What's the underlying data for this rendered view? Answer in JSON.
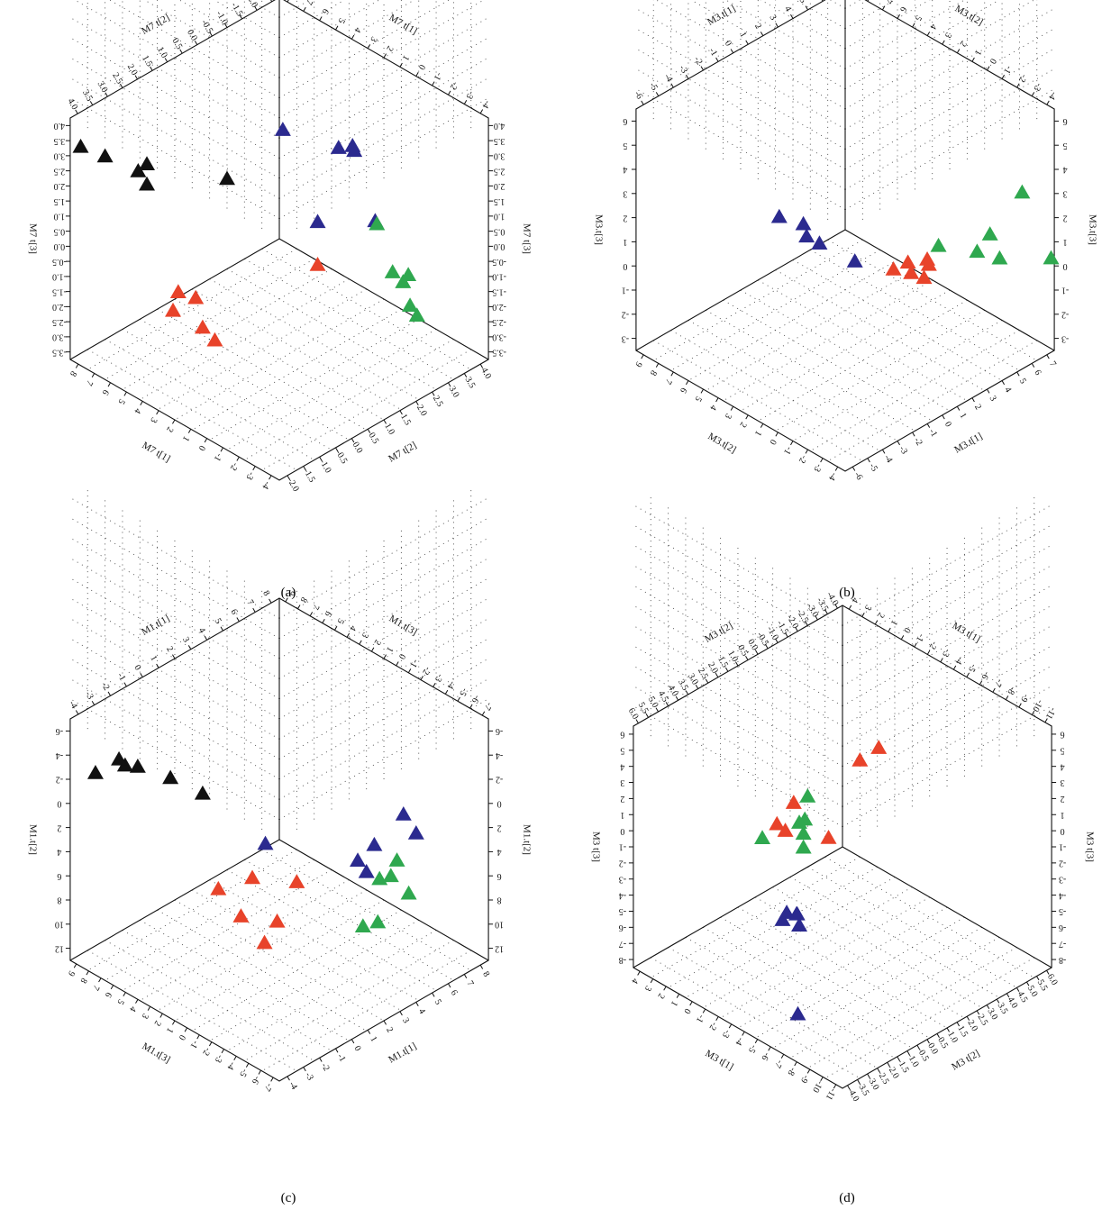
{
  "colors": {
    "red": "#e8432a",
    "green": "#2fa84f",
    "blue": "#2b2a8f",
    "black": "#111111"
  },
  "chart_data": [
    {
      "panel": "(a)",
      "type": "scatter",
      "axes": {
        "top_left": {
          "label": "M7 t[2]",
          "ticks": [
            "4.0",
            "3.5",
            "3.0",
            "2.5",
            "2.0",
            "1.5",
            "1.0",
            "0.5",
            "0.0",
            "-0.5",
            "-1.0",
            "-1.5",
            "-2.0",
            "-2.5"
          ]
        },
        "top_right": {
          "label": "M7 t[1]",
          "ticks": [
            "8",
            "7",
            "6",
            "5",
            "4",
            "3",
            "2",
            "1",
            "0",
            "-1",
            "-2",
            "-3",
            "-4"
          ]
        },
        "left": {
          "label": "M7 t[3]",
          "ticks": [
            "4.0",
            "3.5",
            "3.0",
            "2.5",
            "2.0",
            "1.5",
            "1.0",
            "0.5",
            "0.0",
            "-0.5",
            "-1.0",
            "-1.5",
            "-2.0",
            "-2.5",
            "-3.0",
            "-3.5"
          ]
        },
        "right": {
          "label": "M7 t[3]",
          "ticks": [
            "4.0",
            "3.5",
            "3.0",
            "2.5",
            "2.0",
            "1.5",
            "1.0",
            "0.5",
            "0.0",
            "-0.5",
            "-1.0",
            "-1.5",
            "-2.0",
            "-2.5",
            "-3.0",
            "-3.5"
          ]
        },
        "bottom_left": {
          "label": "M7 t[1]",
          "ticks": [
            "8",
            "7",
            "6",
            "5",
            "4",
            "3",
            "2",
            "1",
            "0",
            "-1",
            "-2",
            "-3",
            "-4"
          ]
        },
        "bottom_right": {
          "label": "M7 t[2]",
          "ticks": [
            "-2.0",
            "-1.5",
            "-1.0",
            "-0.5",
            "0.0",
            "0.5",
            "1.0",
            "1.5",
            "2.0",
            "2.5",
            "3.0",
            "3.5",
            "4.0"
          ]
        }
      },
      "series": [
        {
          "color": "black",
          "points": [
            [
              4.2,
              -3.6,
              2.0
            ],
            [
              3.4,
              -3.3,
              1.4
            ],
            [
              2.4,
              -2.6,
              1.2
            ],
            [
              2.9,
              -2.6,
              1.1
            ],
            [
              3.6,
              -2.0,
              1.4
            ],
            [
              1.4,
              -0.8,
              1.8
            ]
          ]
        },
        {
          "color": "blue",
          "points": [
            [
              -1.0,
              -0.4,
              3.5
            ],
            [
              -1.8,
              0.8,
              3.4
            ],
            [
              -2.2,
              1.0,
              3.5
            ],
            [
              -2.3,
              1.0,
              3.2
            ],
            [
              -0.4,
              0.9,
              0.4
            ],
            [
              -1.9,
              1.8,
              0.6
            ]
          ]
        },
        {
          "color": "green",
          "points": [
            [
              -1.8,
              1.9,
              0.6
            ],
            [
              -1.3,
              2.6,
              -0.9
            ],
            [
              -1.3,
              2.9,
              -1.1
            ],
            [
              -1.8,
              2.8,
              -1.1
            ],
            [
              -1.1,
              3.2,
              -1.9
            ],
            [
              -0.9,
              3.5,
              -2.0
            ]
          ]
        },
        {
          "color": "red",
          "points": [
            [
              0.2,
              1.2,
              -1.2
            ],
            [
              4.4,
              -0.7,
              -2.4
            ],
            [
              4.0,
              -0.4,
              -2.6
            ],
            [
              4.9,
              -0.6,
              -3.0
            ],
            [
              4.6,
              0.1,
              -3.3
            ],
            [
              4.5,
              0.4,
              -3.7
            ]
          ]
        }
      ]
    },
    {
      "panel": "(b)",
      "type": "scatter",
      "axes": {
        "top_left": {
          "label": "M3.t[1]",
          "ticks": [
            "-6",
            "-5",
            "-4",
            "-3",
            "-2",
            "-1",
            "0",
            "1",
            "2",
            "3",
            "4",
            "5",
            "6",
            "7"
          ]
        },
        "top_right": {
          "label": "M3.t[2]",
          "ticks": [
            "9",
            "8",
            "7",
            "6",
            "5",
            "4",
            "3",
            "2",
            "1",
            "0",
            "-1",
            "-2",
            "-3",
            "-4"
          ]
        },
        "left": {
          "label": "M3.t[3]",
          "ticks": [
            "6",
            "5",
            "4",
            "3",
            "2",
            "1",
            "0",
            "-1",
            "-2",
            "-3"
          ]
        },
        "right": {
          "label": "M3.t[3]",
          "ticks": [
            "6",
            "5",
            "4",
            "3",
            "2",
            "1",
            "0",
            "-1",
            "-2",
            "-3"
          ]
        },
        "bottom_left": {
          "label": "M3.t[2]",
          "ticks": [
            "9",
            "8",
            "7",
            "6",
            "5",
            "4",
            "3",
            "2",
            "1",
            "0",
            "-1",
            "-2",
            "-3",
            "-4"
          ]
        },
        "bottom_right": {
          "label": "M3.t[1]",
          "ticks": [
            "-6",
            "-5",
            "-4",
            "-3",
            "-2",
            "-1",
            "0",
            "1",
            "2",
            "3",
            "4",
            "5",
            "6",
            "7"
          ]
        }
      },
      "series": [
        {
          "color": "green",
          "points": [
            [
              -3.5,
              5.5,
              4.0
            ],
            [
              -2.5,
              4.5,
              1.4
            ],
            [
              -2.2,
              5.4,
              0.6
            ],
            [
              -1.6,
              4.6,
              0.9
            ],
            [
              -4.5,
              6.3,
              -0.2
            ],
            [
              -0.8,
              3.0,
              0.8
            ]
          ]
        },
        {
          "color": "blue",
          "points": [
            [
              4.5,
              -1.6,
              3.0
            ],
            [
              3.1,
              -1.5,
              1.8
            ],
            [
              3.4,
              -1.0,
              1.5
            ],
            [
              2.6,
              -1.0,
              0.6
            ],
            [
              1.6,
              0.2,
              -0.4
            ]
          ]
        },
        {
          "color": "red",
          "points": [
            [
              -5.0,
              -1.9,
              -5.3
            ],
            [
              -4.5,
              -2.6,
              -5.6
            ],
            [
              -5.2,
              -2.0,
              -5.8
            ],
            [
              -4.2,
              -3.2,
              -6.2
            ],
            [
              -4.9,
              -2.8,
              -6.6
            ],
            [
              -5.3,
              -2.4,
              -6.9
            ]
          ]
        }
      ]
    },
    {
      "panel": "(c)",
      "type": "scatter",
      "axes": {
        "top_left": {
          "label": "M1.t[1]",
          "ticks": [
            "-4",
            "-3",
            "-2",
            "-1",
            "0",
            "1",
            "2",
            "3",
            "4",
            "5",
            "6",
            "7",
            "8"
          ]
        },
        "top_right": {
          "label": "M1.t[3]",
          "ticks": [
            "9",
            "8",
            "7",
            "6",
            "5",
            "4",
            "3",
            "2",
            "1",
            "0",
            "-1",
            "-2",
            "-3",
            "-4",
            "-5",
            "-6",
            "-7"
          ]
        },
        "left": {
          "label": "M1.t[2]",
          "ticks": [
            "-6",
            "-4",
            "-2",
            "0",
            "2",
            "4",
            "6",
            "8",
            "10",
            "12"
          ]
        },
        "right": {
          "label": "M1.t[2]",
          "ticks": [
            "-6",
            "-4",
            "-2",
            "0",
            "2",
            "4",
            "6",
            "8",
            "10",
            "12"
          ]
        },
        "bottom_left": {
          "label": "M1.t[3]",
          "ticks": [
            "9",
            "8",
            "7",
            "6",
            "5",
            "4",
            "3",
            "2",
            "1",
            "0",
            "-1",
            "-2",
            "-3",
            "-4",
            "-5",
            "-6",
            "-7"
          ]
        },
        "bottom_right": {
          "label": "M1.t[1]",
          "ticks": [
            "-4",
            "-3",
            "-2",
            "-1",
            "0",
            "1",
            "2",
            "3",
            "4",
            "5",
            "6",
            "7",
            "8"
          ]
        }
      },
      "series": [
        {
          "color": "black",
          "points": [
            [
              4.0,
              -2.0,
              -4.0
            ],
            [
              4.5,
              -3.5,
              -4.0
            ],
            [
              4.8,
              -4.0,
              -3.8
            ],
            [
              5.0,
              -4.2,
              -4.5
            ],
            [
              6.0,
              -4.8,
              -3.0
            ],
            [
              2.2,
              -1.5,
              -1.0
            ]
          ]
        },
        {
          "color": "blue",
          "points": [
            [
              -2.5,
              6.5,
              -4.0
            ],
            [
              -2.8,
              7.0,
              -2.0
            ],
            [
              -1.6,
              5.5,
              0.2
            ],
            [
              -1.0,
              5.0,
              2.2
            ],
            [
              -1.0,
              5.5,
              3.0
            ],
            [
              1.0,
              1.2,
              3.0
            ]
          ]
        },
        {
          "color": "green",
          "points": [
            [
              -2.4,
              6.2,
              2.0
            ],
            [
              -2.2,
              6.0,
              4.0
            ],
            [
              -2.0,
              5.5,
              4.8
            ],
            [
              -2.9,
              6.5,
              6.2
            ],
            [
              -1.2,
              6.0,
              8.8
            ],
            [
              -1.0,
              5.3,
              10.0
            ]
          ]
        },
        {
          "color": "red",
          "points": [
            [
              1.0,
              3.0,
              5.5
            ],
            [
              2.8,
              1.8,
              4.8
            ],
            [
              3.4,
              0.3,
              7.5
            ],
            [
              2.5,
              3.0,
              9.0
            ],
            [
              3.0,
              1.3,
              10.0
            ],
            [
              2.8,
              2.5,
              12.0
            ]
          ]
        }
      ]
    },
    {
      "panel": "(d)",
      "type": "scatter",
      "axes": {
        "top_left": {
          "label": "M3 t[2]",
          "ticks": [
            "6.0",
            "5.5",
            "5.0",
            "4.5",
            "4.0",
            "3.5",
            "3.0",
            "2.5",
            "2.0",
            "1.5",
            "1.0",
            "0.5",
            "0.0",
            "-0.5",
            "-1.0",
            "-1.5",
            "-2.0",
            "-2.5",
            "-3.0",
            "-3.5",
            "-4.0"
          ]
        },
        "top_right": {
          "label": "M3 t[1]",
          "ticks": [
            "4",
            "3",
            "2",
            "1",
            "0",
            "-1",
            "-2",
            "-3",
            "-4",
            "-5",
            "-6",
            "-7",
            "-8",
            "-9",
            "-10",
            "-11"
          ]
        },
        "left": {
          "label": "M3 t[3]",
          "ticks": [
            "6",
            "5",
            "4",
            "3",
            "2",
            "1",
            "0",
            "-1",
            "-2",
            "-3",
            "-4",
            "-5",
            "-6",
            "-7",
            "-8"
          ]
        },
        "right": {
          "label": "M3 t[3]",
          "ticks": [
            "6",
            "5",
            "4",
            "3",
            "2",
            "1",
            "0",
            "-1",
            "-2",
            "-3",
            "-4",
            "-5",
            "-6",
            "-7",
            "-8"
          ]
        },
        "bottom_left": {
          "label": "M3 t[1]",
          "ticks": [
            "4",
            "3",
            "2",
            "1",
            "0",
            "-1",
            "-2",
            "-3",
            "-4",
            "-5",
            "-6",
            "-7",
            "-8",
            "-9",
            "-10",
            "-11"
          ]
        },
        "bottom_right": {
          "label": "M3 t[2]",
          "ticks": [
            "-4.0",
            "-3.5",
            "-3.0",
            "-2.5",
            "-2.0",
            "-1.5",
            "-1.0",
            "-0.5",
            "0.0",
            "0.5",
            "1.0",
            "1.5",
            "2.0",
            "2.5",
            "3.0",
            "3.5",
            "4.0",
            "4.5",
            "5.0",
            "5.5",
            "6.0"
          ]
        }
      },
      "series": [
        {
          "color": "green",
          "points": [
            [
              2.0,
              2.8,
              6.5
            ],
            [
              -1.0,
              1.0,
              7.0
            ],
            [
              0.5,
              1.8,
              5.5
            ],
            [
              -0.5,
              1.2,
              5.4
            ],
            [
              -1.0,
              0.6,
              4.0
            ],
            [
              0.0,
              -0.5,
              2.0
            ]
          ]
        },
        {
          "color": "blue",
          "points": [
            [
              3.5,
              3.0,
              1.6
            ],
            [
              3.2,
              3.4,
              0.6
            ],
            [
              2.8,
              3.0,
              0.9
            ],
            [
              2.0,
              2.5,
              -0.3
            ],
            [
              0.5,
              0.8,
              -4.0
            ],
            [
              4.2,
              4.0,
              -6.5
            ]
          ]
        },
        {
          "color": "red",
          "points": [
            [
              -1.2,
              -0.6,
              2.3
            ],
            [
              -1.8,
              -0.6,
              1.2
            ],
            [
              -3.0,
              -1.0,
              2.5
            ],
            [
              -4.0,
              0.0,
              -0.5
            ],
            [
              -8.5,
              -0.6,
              4.0
            ],
            [
              -10.0,
              -2.5,
              -0.6
            ]
          ]
        }
      ]
    }
  ]
}
